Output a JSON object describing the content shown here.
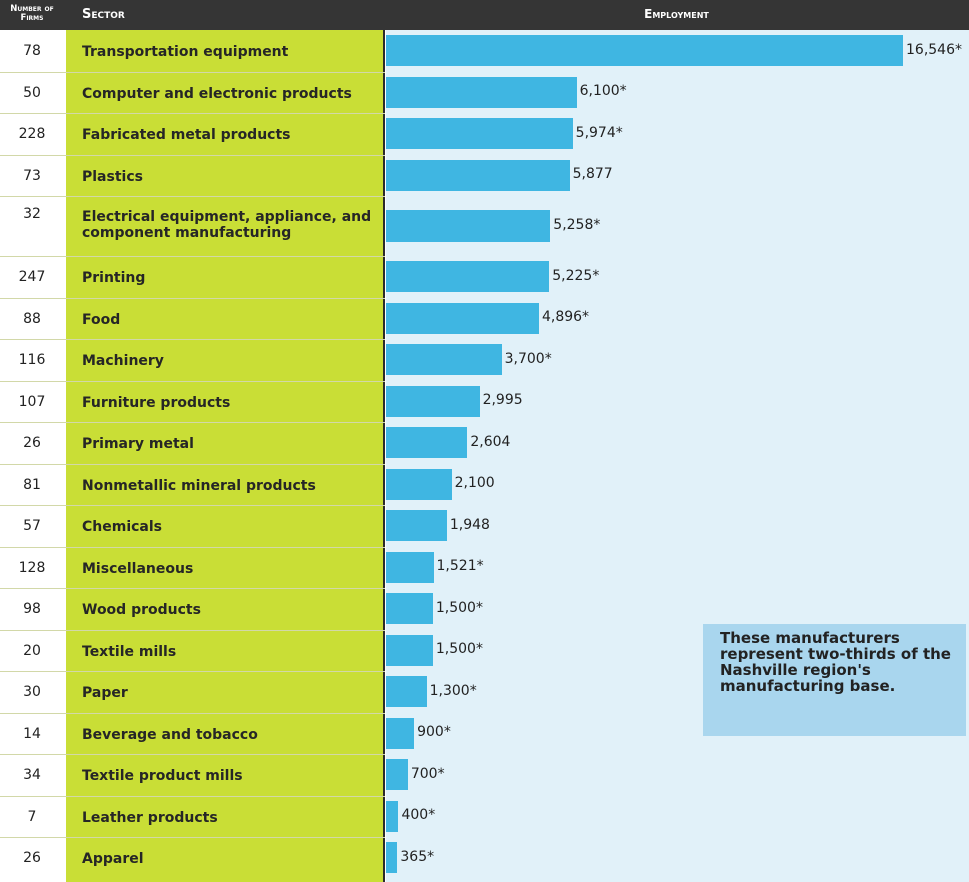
{
  "headers": {
    "firms": "Number of Firms",
    "sector": "Sector",
    "employment": "Employment"
  },
  "note": "These manufacturers represent two-thirds of the Nashville region's manufacturing base.",
  "colors": {
    "header_bg": "#353535",
    "sector_band": "#c9de36",
    "plot_bg": "#e1f1f9",
    "bar": "#3fb6e2",
    "note_bg": "#a9d6ee"
  },
  "chart_data": {
    "type": "bar",
    "orientation": "horizontal",
    "xlabel": "Employment",
    "categories": [
      "Transportation equipment",
      "Computer and electronic products",
      "Fabricated metal products",
      "Plastics",
      "Electrical equipment, appliance, and component manufacturing",
      "Printing",
      "Food",
      "Machinery",
      "Furniture products",
      "Primary metal",
      "Nonmetallic mineral products",
      "Chemicals",
      "Miscellaneous",
      "Wood products",
      "Textile mills",
      "Paper",
      "Beverage and tobacco",
      "Textile product mills",
      "Leather products",
      "Apparel"
    ],
    "values": [
      16546,
      6100,
      5974,
      5877,
      5258,
      5225,
      4896,
      3700,
      2995,
      2604,
      2100,
      1948,
      1521,
      1500,
      1500,
      1300,
      900,
      700,
      400,
      365
    ],
    "value_labels": [
      "16,546*",
      "6,100*",
      "5,974*",
      "5,877",
      "5,258*",
      "5,225*",
      "4,896*",
      "3,700*",
      "2,995",
      "2,604",
      "2,100",
      "1,948",
      "1,521*",
      "1,500*",
      "1,500*",
      "1,300*",
      "900*",
      "700*",
      "400*",
      "365*"
    ],
    "firms": [
      78,
      50,
      228,
      73,
      32,
      247,
      88,
      116,
      107,
      26,
      81,
      57,
      128,
      98,
      20,
      30,
      14,
      34,
      7,
      26
    ],
    "xlim": [
      0,
      16546
    ]
  }
}
